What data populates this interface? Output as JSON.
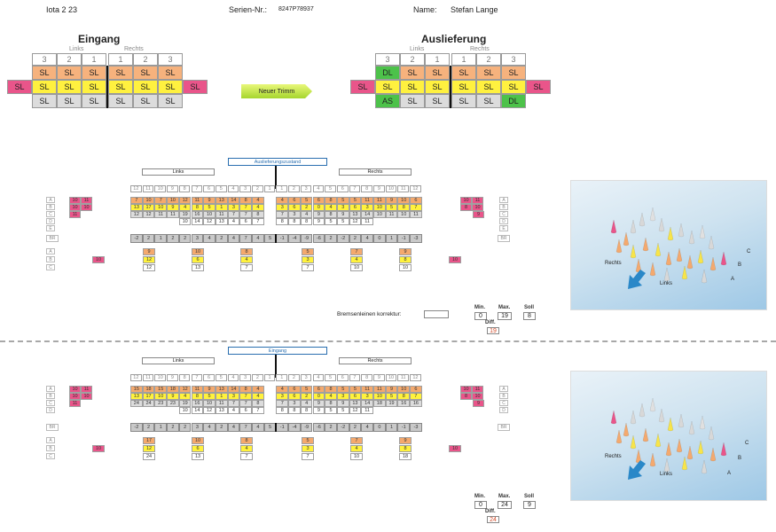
{
  "header": {
    "model": "Iota 2 23",
    "serial_label": "Serien-Nr.:",
    "serial_value": "8247P78937",
    "name_label": "Name:",
    "name_value": "Stefan Lange"
  },
  "eingang": {
    "title": "Eingang",
    "links": "Links",
    "rechts": "Rechts",
    "numbers": [
      "3",
      "2",
      "1",
      "1",
      "2",
      "3"
    ],
    "rows": [
      [
        "SL",
        "SL",
        "SL",
        "SL",
        "SL",
        "SL"
      ],
      [
        "SL",
        "SL",
        "SL",
        "SL",
        "SL",
        "SL"
      ],
      [
        "SL",
        "SL",
        "SL",
        "SL",
        "SL",
        "SL"
      ]
    ],
    "side": [
      "SL",
      "SL"
    ]
  },
  "auslieferung": {
    "title": "Auslieferung",
    "links": "Links",
    "rechts": "Rechts",
    "numbers": [
      "3",
      "2",
      "1",
      "1",
      "2",
      "3"
    ],
    "rows": [
      [
        "DL",
        "SL",
        "SL",
        "SL",
        "SL",
        "SL"
      ],
      [
        "SL",
        "SL",
        "SL",
        "SL",
        "SL",
        "SL"
      ],
      [
        "AS",
        "SL",
        "SL",
        "SL",
        "SL",
        "DL"
      ]
    ],
    "side": [
      "SL",
      "SL"
    ]
  },
  "button": {
    "label": "Neuer Trimm"
  },
  "table1": {
    "caption": "Auslieferungszustand",
    "links": "Links",
    "rechts": "Rechts",
    "colnums": [
      "12",
      "11",
      "10",
      "9",
      "8",
      "7",
      "6",
      "5",
      "4",
      "3",
      "2",
      "1",
      "1",
      "2",
      "3",
      "4",
      "5",
      "6",
      "7",
      "8",
      "9",
      "10",
      "11",
      "12"
    ],
    "row_letters": [
      "A",
      "B",
      "C",
      "D",
      "E"
    ],
    "rowA": [
      "7",
      "10",
      "7",
      "10",
      "12",
      "11",
      "9",
      "13",
      "14",
      "8",
      "4",
      "4",
      "6",
      "5",
      "6",
      "8",
      "5",
      "5",
      "11",
      "11",
      "9",
      "10",
      "6"
    ],
    "rowB": [
      "13",
      "17",
      "10",
      "9",
      "4",
      "8",
      "5",
      "1",
      "3",
      "7",
      "4",
      "3",
      "6",
      "2",
      "0",
      "4",
      "3",
      "6",
      "3",
      "10",
      "5",
      "8",
      "7"
    ],
    "rowC": [
      "12",
      "12",
      "11",
      "11",
      "19",
      "16",
      "10",
      "11",
      "7",
      "7",
      "8",
      "7",
      "3",
      "4",
      "9",
      "8",
      "9",
      "13",
      "14",
      "10",
      "11",
      "10",
      "11"
    ],
    "rowD": [
      "10",
      "14",
      "12",
      "13",
      "4",
      "6",
      "7",
      "8",
      "8",
      "8",
      "9",
      "5",
      "5",
      "12",
      "11"
    ],
    "left_side": [
      [
        "10",
        "11"
      ],
      [
        "10",
        "10"
      ],
      [
        "11"
      ]
    ],
    "right_side": [
      [
        "10",
        "11"
      ],
      [
        "8",
        "10"
      ],
      [
        "9"
      ]
    ],
    "br_label": "BR",
    "br": [
      "-2",
      "2",
      "1",
      "2",
      "2",
      "3",
      "4",
      "2",
      "4",
      "7",
      "4",
      "5",
      "-1",
      "-4",
      "-9",
      "-6",
      "2",
      "-2",
      "2",
      "4",
      "0",
      "1",
      "-1",
      "-3"
    ],
    "lower_letters": [
      "A",
      "B",
      "C"
    ],
    "lower_cols": [
      [
        "9",
        "12",
        "12"
      ],
      [
        "10",
        "6",
        "13"
      ],
      [
        "8",
        "4",
        "7"
      ],
      [
        "5",
        "3",
        "7"
      ],
      [
        "7",
        "4",
        "10"
      ],
      [
        "9",
        "8",
        "10"
      ]
    ],
    "lower_side": [
      "10",
      "10"
    ],
    "brems_label": "Bremsenleinen korrektur:",
    "min_label": "Min.",
    "min": "0",
    "max_label": "Max.",
    "max": "19",
    "soll_label": "Soll",
    "soll": "8",
    "diff_label": "Diff.",
    "diff": "19"
  },
  "table2": {
    "caption": "Eingang",
    "links": "Links",
    "rechts": "Rechts",
    "colnums": [
      "12",
      "11",
      "10",
      "9",
      "8",
      "7",
      "6",
      "5",
      "4",
      "3",
      "2",
      "1",
      "1",
      "2",
      "3",
      "4",
      "5",
      "6",
      "7",
      "8",
      "9",
      "10",
      "11",
      "12"
    ],
    "row_letters": [
      "A",
      "B",
      "C",
      "D"
    ],
    "rowA": [
      "15",
      "18",
      "15",
      "18",
      "12",
      "11",
      "9",
      "13",
      "14",
      "8",
      "4",
      "4",
      "6",
      "5",
      "6",
      "8",
      "5",
      "5",
      "11",
      "11",
      "9",
      "10",
      "6"
    ],
    "rowB": [
      "13",
      "17",
      "10",
      "9",
      "4",
      "8",
      "5",
      "1",
      "3",
      "7",
      "4",
      "3",
      "6",
      "2",
      "0",
      "4",
      "3",
      "6",
      "3",
      "10",
      "5",
      "8",
      "7"
    ],
    "rowC": [
      "24",
      "24",
      "23",
      "23",
      "19",
      "16",
      "10",
      "11",
      "7",
      "7",
      "8",
      "7",
      "3",
      "4",
      "9",
      "8",
      "9",
      "13",
      "14",
      "18",
      "19",
      "16",
      "16"
    ],
    "rowD": [
      "10",
      "14",
      "12",
      "13",
      "4",
      "6",
      "7",
      "8",
      "8",
      "8",
      "9",
      "5",
      "5",
      "12",
      "11"
    ],
    "left_side": [
      [
        "10",
        "11"
      ],
      [
        "10",
        "10"
      ],
      [
        "11"
      ]
    ],
    "right_side": [
      [
        "10",
        "11"
      ],
      [
        "8",
        "10"
      ],
      [
        "9"
      ]
    ],
    "br_label": "BR",
    "br": [
      "-2",
      "2",
      "1",
      "2",
      "2",
      "3",
      "4",
      "2",
      "4",
      "7",
      "4",
      "5",
      "-1",
      "-4",
      "-9",
      "-6",
      "2",
      "-2",
      "2",
      "4",
      "0",
      "1",
      "-1",
      "-3"
    ],
    "lower_letters": [
      "A",
      "B",
      "C"
    ],
    "lower_cols": [
      [
        "17",
        "12",
        "24"
      ],
      [
        "10",
        "6",
        "13"
      ],
      [
        "8",
        "4",
        "7"
      ],
      [
        "5",
        "3",
        "7"
      ],
      [
        "7",
        "4",
        "10"
      ],
      [
        "9",
        "8",
        "18"
      ]
    ],
    "lower_side": [
      "10",
      "10"
    ],
    "min_label": "Min.",
    "min": "0",
    "max_label": "Max.",
    "max": "24",
    "soll_label": "Soll",
    "soll": "9",
    "diff_label": "Diff.",
    "diff": "24"
  },
  "photo": {
    "rechts": "Rechts",
    "links": "Links",
    "a": "A",
    "b": "B",
    "c": "C"
  },
  "colors": {
    "orange": "#f6b27d",
    "yellow": "#fff13f",
    "grey": "#dcdcdc",
    "pink": "#e9558a",
    "green": "#4dc24a",
    "blue_caption": "#2a6fb0"
  }
}
